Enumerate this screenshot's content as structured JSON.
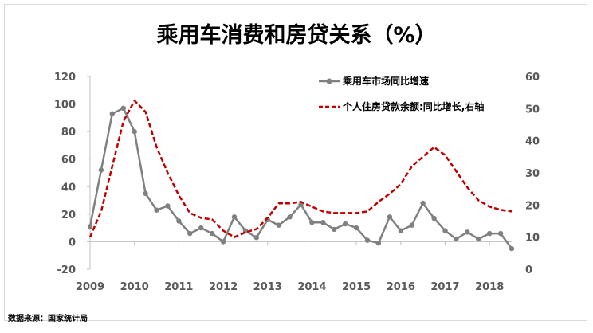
{
  "chart_data": {
    "type": "line",
    "title": "乘用车消费和房贷关系（%）",
    "source": "数据来源：国家统计局",
    "x": [
      2009.0,
      2009.25,
      2009.5,
      2009.75,
      2010.0,
      2010.25,
      2010.5,
      2010.75,
      2011.0,
      2011.25,
      2011.5,
      2011.75,
      2012.0,
      2012.25,
      2012.5,
      2012.75,
      2013.0,
      2013.25,
      2013.5,
      2013.75,
      2014.0,
      2014.25,
      2014.5,
      2014.75,
      2015.0,
      2015.25,
      2015.5,
      2015.75,
      2016.0,
      2016.25,
      2016.5,
      2016.75,
      2017.0,
      2017.25,
      2017.5,
      2017.75,
      2018.0,
      2018.25,
      2018.5
    ],
    "x_ticks": [
      "2009",
      "2010",
      "2011",
      "2012",
      "2013",
      "2014",
      "2015",
      "2016",
      "2017",
      "2018"
    ],
    "x_tick_values": [
      2009,
      2010,
      2011,
      2012,
      2013,
      2014,
      2015,
      2016,
      2017,
      2018
    ],
    "xlim": [
      2009,
      2018.5
    ],
    "y_left": {
      "min": -20,
      "max": 120,
      "ticks": [
        -20,
        0,
        20,
        40,
        60,
        80,
        100,
        120
      ]
    },
    "y_right": {
      "min": 0,
      "max": 60,
      "ticks": [
        0,
        10,
        20,
        30,
        40,
        50,
        60
      ]
    },
    "series": [
      {
        "name": "乘用车市场同比增速",
        "axis": "left",
        "style": "solid-marker",
        "color": "#808080",
        "values": [
          11,
          52,
          93,
          97,
          80,
          35,
          23,
          26,
          15,
          6,
          10,
          6,
          0,
          18,
          8,
          3,
          16,
          12,
          18,
          27,
          14,
          14,
          9,
          13,
          10,
          1,
          -1,
          18,
          8,
          12,
          28,
          17,
          8,
          2,
          7,
          2,
          6,
          6,
          -5
        ]
      },
      {
        "name": "个人住房贷款余额:同比增长,右轴",
        "axis": "right",
        "style": "dashed",
        "color": "#c00000",
        "values": [
          10,
          18,
          32,
          46,
          52.5,
          49,
          38,
          30,
          23,
          17.5,
          16,
          15.5,
          12,
          10,
          11.5,
          12.5,
          16,
          20.5,
          20.5,
          21,
          19.5,
          18,
          17.5,
          17.5,
          17.5,
          18,
          21,
          23.5,
          26.5,
          32,
          35,
          38,
          35.5,
          30.5,
          25.5,
          21.5,
          19.5,
          18.5,
          18
        ]
      }
    ],
    "legend_position": "top-right"
  },
  "colors": {
    "line1": "#808080",
    "line2": "#c00000",
    "axis": "#bfbfbf",
    "tick_text": "#595959"
  }
}
